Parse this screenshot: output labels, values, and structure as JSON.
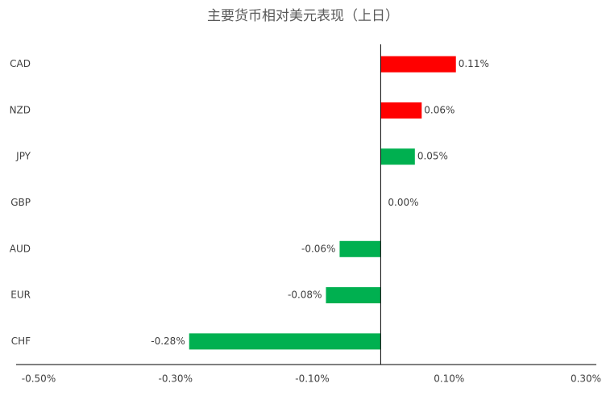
{
  "chart_data": {
    "type": "barh",
    "title": "主要货币相对美元表现（上日）",
    "categories": [
      "CAD",
      "NZD",
      "JPY",
      "GBP",
      "AUD",
      "EUR",
      "CHF"
    ],
    "values": [
      0.11,
      0.06,
      0.05,
      0.0,
      -0.06,
      -0.08,
      -0.28
    ],
    "value_labels": [
      "0.11%",
      "0.06%",
      "0.05%",
      "0.00%",
      "-0.06%",
      "-0.08%",
      "-0.28%"
    ],
    "colors": [
      "#ff0000",
      "#ff0000",
      "#00b050",
      "#00b050",
      "#00b050",
      "#00b050",
      "#00b050"
    ],
    "xlim": [
      -0.5,
      0.3
    ],
    "xticks": [
      {
        "value": -0.5,
        "label": "-0.50%"
      },
      {
        "value": -0.3,
        "label": "-0.30%"
      },
      {
        "value": -0.1,
        "label": "-0.10%"
      },
      {
        "value": 0.1,
        "label": "0.10%"
      },
      {
        "value": 0.3,
        "label": "0.30%"
      }
    ]
  }
}
